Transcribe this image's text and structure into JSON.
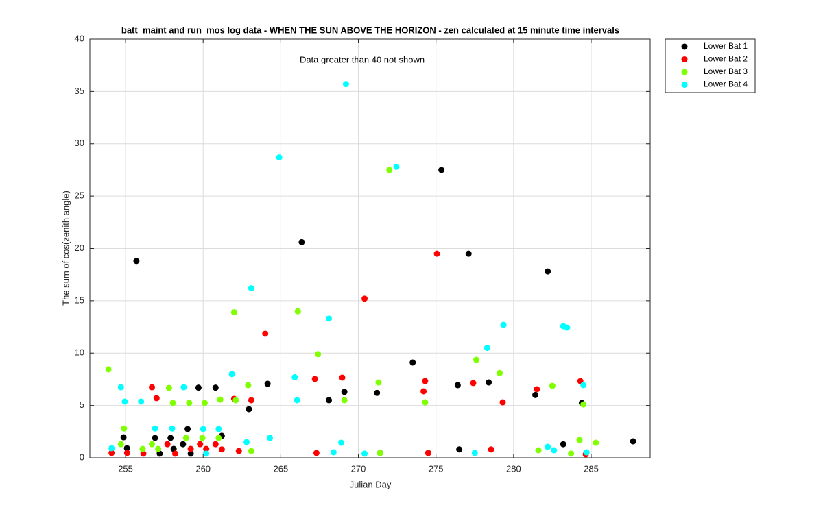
{
  "chart_data": {
    "type": "scatter",
    "title": "batt_maint and run_mos log data - WHEN THE SUN ABOVE THE HORIZON - zen calculated at 15 minute time intervals",
    "annotation": "Data greater than 40 not shown",
    "x_label": "Julian Day",
    "y_label": "The sum of cos(zenith angle)",
    "xlim": [
      252.7,
      288.8
    ],
    "ylim": [
      0,
      40
    ],
    "xticks": [
      255,
      260,
      265,
      270,
      275,
      280,
      285
    ],
    "yticks": [
      0,
      5,
      10,
      15,
      20,
      25,
      30,
      35,
      40
    ],
    "grid": true,
    "legend": "outside-top-right",
    "series": [
      {
        "name": "Lower Bat 1",
        "color": "#000000",
        "x": [
          254.87,
          255.09,
          255.7,
          256.9,
          257.2,
          257.9,
          258.1,
          258.7,
          259.0,
          259.2,
          259.7,
          260.8,
          261.2,
          262.95,
          264.15,
          266.35,
          268.1,
          269.1,
          271.2,
          271.4,
          273.5,
          274.5,
          275.35,
          276.4,
          276.5,
          277.1,
          278.4,
          281.4,
          282.2,
          283.2,
          284.4,
          287.7
        ],
        "values": [
          1.96,
          0.92,
          18.8,
          1.9,
          0.4,
          1.9,
          0.85,
          1.3,
          2.75,
          0.4,
          6.7,
          6.7,
          2.1,
          4.65,
          7.07,
          20.6,
          5.5,
          6.3,
          6.2,
          0.46,
          9.1,
          0.46,
          27.5,
          6.94,
          0.8,
          19.5,
          7.2,
          6.0,
          17.8,
          1.3,
          5.24,
          1.57
        ]
      },
      {
        "name": "Lower Bat 2",
        "color": "#ff0000",
        "x": [
          254.1,
          255.1,
          256.15,
          256.7,
          257.0,
          257.7,
          258.2,
          259.2,
          259.8,
          260.2,
          260.8,
          261.2,
          262.0,
          262.3,
          263.1,
          264.0,
          267.2,
          267.3,
          268.96,
          270.4,
          274.2,
          274.3,
          274.5,
          275.06,
          277.4,
          278.55,
          279.3,
          281.5,
          284.3,
          284.65
        ],
        "values": [
          0.46,
          0.46,
          0.4,
          6.74,
          5.7,
          1.3,
          0.4,
          0.85,
          1.3,
          0.85,
          1.3,
          0.8,
          5.63,
          0.65,
          5.5,
          11.85,
          7.53,
          0.46,
          7.66,
          15.2,
          6.35,
          7.33,
          0.46,
          19.5,
          7.14,
          0.8,
          5.3,
          6.55,
          7.33,
          0.33
        ]
      },
      {
        "name": "Lower Bat 3",
        "color": "#7fff00",
        "x": [
          253.9,
          254.7,
          254.9,
          256.1,
          256.7,
          257.1,
          257.8,
          258.05,
          258.9,
          259.1,
          259.95,
          260.1,
          261.0,
          261.1,
          262.0,
          262.1,
          262.9,
          263.1,
          266.1,
          267.4,
          269.1,
          271.3,
          271.4,
          272.0,
          274.3,
          277.6,
          279.1,
          281.6,
          282.5,
          283.7,
          284.25,
          284.5,
          285.3
        ],
        "values": [
          8.45,
          1.3,
          2.8,
          0.85,
          1.3,
          0.85,
          6.68,
          5.24,
          1.9,
          5.24,
          1.9,
          5.24,
          1.9,
          5.56,
          13.9,
          5.5,
          6.94,
          0.65,
          14.0,
          9.9,
          5.5,
          7.2,
          0.46,
          27.5,
          5.3,
          9.36,
          8.1,
          0.72,
          6.87,
          0.4,
          1.7,
          5.1,
          1.44
        ]
      },
      {
        "name": "Lower Bat 4",
        "color": "#00ffff",
        "x": [
          254.1,
          254.7,
          254.95,
          256.0,
          256.9,
          258.0,
          258.75,
          260.0,
          260.2,
          261.0,
          261.85,
          262.8,
          263.1,
          264.3,
          264.9,
          265.9,
          266.05,
          268.1,
          268.4,
          268.9,
          269.2,
          270.4,
          272.45,
          277.5,
          278.3,
          279.35,
          282.2,
          282.6,
          283.2,
          283.45,
          284.5,
          284.7
        ],
        "values": [
          0.92,
          6.74,
          5.37,
          5.37,
          2.8,
          2.8,
          6.74,
          2.75,
          0.4,
          2.75,
          8.0,
          1.5,
          16.2,
          1.9,
          28.7,
          7.7,
          5.5,
          13.3,
          0.52,
          1.44,
          35.7,
          0.4,
          27.8,
          0.46,
          10.5,
          12.7,
          1.05,
          0.72,
          12.57,
          12.44,
          6.94,
          0.52
        ]
      }
    ]
  }
}
